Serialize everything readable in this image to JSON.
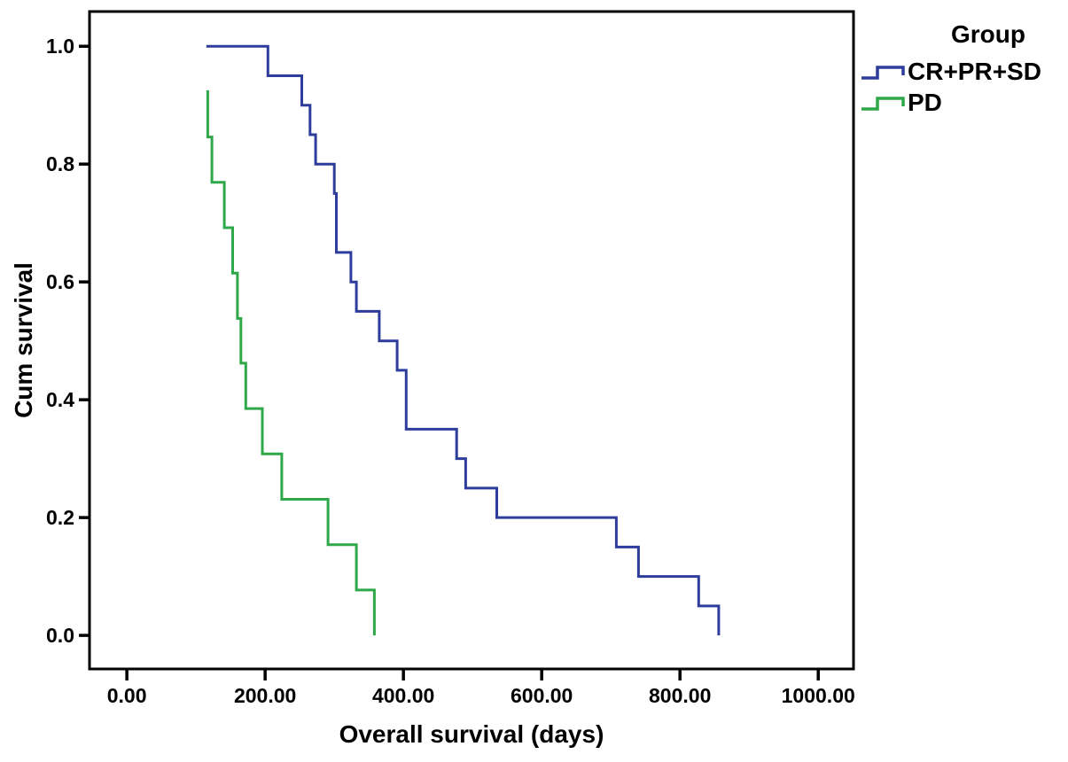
{
  "chart_data": {
    "type": "line",
    "subtype": "kaplan-meier-step",
    "title": "",
    "xlabel": "Overall survival (days)",
    "ylabel": "Cum survival",
    "grid": false,
    "xlim": [
      -54,
      1051
    ],
    "ylim": [
      -0.057,
      1.059
    ],
    "xticks": [
      {
        "v": 0,
        "label": "0.00"
      },
      {
        "v": 200,
        "label": "200.00"
      },
      {
        "v": 400,
        "label": "400.00"
      },
      {
        "v": 600,
        "label": "600.00"
      },
      {
        "v": 800,
        "label": "800.00"
      },
      {
        "v": 1000,
        "label": "1000.00"
      }
    ],
    "yticks": [
      {
        "v": 0.0,
        "label": "0.0"
      },
      {
        "v": 0.2,
        "label": "0.2"
      },
      {
        "v": 0.4,
        "label": "0.4"
      },
      {
        "v": 0.6,
        "label": "0.6"
      },
      {
        "v": 0.8,
        "label": "0.8"
      },
      {
        "v": 1.0,
        "label": "1.0"
      }
    ],
    "legend": {
      "title": "Group",
      "position": "outside-top-right",
      "entries": [
        "CR+PR+SD",
        "PD"
      ]
    },
    "series": [
      {
        "name": "CR+PR+SD",
        "color": "#2E3D9B",
        "steps": [
          [
            115,
            1.0
          ],
          [
            204,
            0.95
          ],
          [
            253,
            0.9
          ],
          [
            265,
            0.85
          ],
          [
            273,
            0.8
          ],
          [
            300,
            0.75
          ],
          [
            303,
            0.65
          ],
          [
            324,
            0.6
          ],
          [
            332,
            0.55
          ],
          [
            365,
            0.5
          ],
          [
            391,
            0.45
          ],
          [
            404,
            0.35
          ],
          [
            477,
            0.3
          ],
          [
            490,
            0.25
          ],
          [
            535,
            0.2
          ],
          [
            708,
            0.15
          ],
          [
            740,
            0.1
          ],
          [
            827,
            0.05
          ],
          [
            856,
            0.0
          ]
        ]
      },
      {
        "name": "PD",
        "color": "#2FA84A",
        "steps": [
          [
            115,
            0.923
          ],
          [
            117,
            0.846
          ],
          [
            123,
            0.769
          ],
          [
            141,
            0.692
          ],
          [
            153,
            0.615
          ],
          [
            160,
            0.538
          ],
          [
            165,
            0.462
          ],
          [
            172,
            0.385
          ],
          [
            196,
            0.308
          ],
          [
            224,
            0.231
          ],
          [
            291,
            0.154
          ],
          [
            332,
            0.077
          ],
          [
            358,
            0.0
          ]
        ]
      }
    ]
  }
}
